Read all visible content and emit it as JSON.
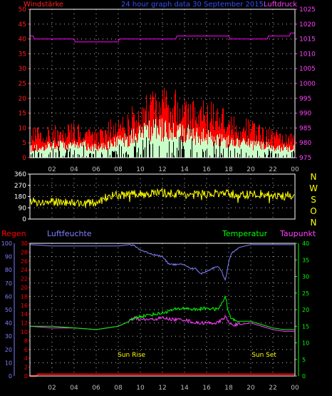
{
  "header": {
    "wind_title": "Windstärke",
    "center_title": "24 hour graph data  30 September 2015",
    "pressure_title": "Luftdruck"
  },
  "colors": {
    "background": "#000000",
    "grid": "#bdbdbd",
    "wind_gust": "#ff0000",
    "wind_avg": "#c8ffc8",
    "wind_dark": "#000000",
    "pressure": "#ff00ff",
    "direction": "#ffff00",
    "humidity": "#8080ff",
    "temperature": "#00ff00",
    "dewpoint": "#ff40ff",
    "rain": "#ff0000",
    "wind_axis": "#ff2020",
    "pressure_axis": "#ff40ff",
    "humidity_axis": "#8080ff",
    "temp_axis": "#00ff00",
    "rain_axis": "#ff0000",
    "sun_label": "#ffff00",
    "direction_axis": "#ffff00"
  },
  "chart_data": [
    {
      "id": "wind",
      "type": "bar",
      "title": "Windstärke",
      "x_ticks": [
        "02",
        "04",
        "06",
        "08",
        "10",
        "12",
        "14",
        "16",
        "18",
        "20",
        "22",
        "00"
      ],
      "y_ticks_left": [
        "0",
        "5",
        "10",
        "15",
        "20",
        "25",
        "30",
        "35",
        "40",
        "45",
        "50"
      ],
      "ylim": [
        0,
        50
      ],
      "grid": true,
      "series": [
        {
          "name": "Windstärke",
          "x_hours": [
            0,
            1,
            2,
            3,
            4,
            5,
            6,
            7,
            8,
            9,
            10,
            11,
            12,
            13,
            14,
            15,
            16,
            17,
            18,
            19,
            20,
            21,
            22,
            23,
            24
          ],
          "gust": [
            7,
            8,
            8,
            8,
            9,
            8,
            7,
            9,
            10,
            12,
            15,
            16,
            17,
            17,
            15,
            14,
            14,
            13,
            11,
            10,
            9,
            8,
            7,
            6,
            6
          ],
          "avg": [
            3,
            3,
            4,
            4,
            4,
            4,
            3,
            4,
            5,
            6,
            8,
            9,
            9,
            9,
            8,
            7,
            7,
            6,
            5,
            5,
            4,
            4,
            3,
            3,
            3
          ]
        }
      ],
      "secondary_axis": {
        "label": "Luftdruck",
        "y_ticks": [
          "975",
          "980",
          "985",
          "990",
          "995",
          "1000",
          "1005",
          "1010",
          "1015",
          "1020",
          "1025"
        ],
        "ylim": [
          975,
          1025
        ],
        "series": [
          {
            "name": "Luftdruck",
            "x_hours": [
              0,
              0.3,
              0.4,
              4.0,
              4.1,
              8.0,
              8.1,
              13.2,
              13.3,
              18.0,
              18.1,
              18.3,
              18.4,
              21.5,
              21.6,
              23.5,
              23.6,
              24
            ],
            "values": [
              1016,
              1016,
              1015,
              1015,
              1014,
              1014,
              1015,
              1015,
              1016,
              1016,
              1015,
              1015,
              1015,
              1015,
              1016,
              1016,
              1017,
              1017
            ]
          }
        ]
      }
    },
    {
      "id": "direction",
      "type": "line",
      "y_ticks_left": [
        "0",
        "90",
        "180",
        "270",
        "360"
      ],
      "ylim": [
        0,
        360
      ],
      "y_labels_right": [
        "N",
        "W",
        "S",
        "O",
        "N"
      ],
      "grid": true,
      "series": [
        {
          "name": "",
          "x_hours": [
            0,
            1,
            2,
            3,
            4,
            5,
            6,
            7,
            8,
            9,
            10,
            11,
            12,
            13,
            14,
            15,
            16,
            17,
            18,
            19,
            20,
            21,
            22,
            23,
            24
          ],
          "values": [
            150,
            130,
            135,
            140,
            130,
            125,
            130,
            180,
            190,
            195,
            200,
            205,
            210,
            205,
            200,
            195,
            200,
            205,
            200,
            195,
            195,
            200,
            190,
            180,
            200
          ]
        }
      ]
    },
    {
      "id": "climate",
      "type": "line",
      "x_ticks": [
        "02",
        "04",
        "06",
        "08",
        "10",
        "12",
        "14",
        "16",
        "18",
        "20",
        "22",
        "00"
      ],
      "grid": true,
      "left_axes": [
        {
          "label": "Regen",
          "y_ticks": [
            "0",
            "2",
            "4",
            "6",
            "8",
            "10",
            "12",
            "14",
            "16",
            "18",
            "20",
            "22",
            "24",
            "26",
            "28",
            "30"
          ],
          "ylim": [
            0,
            30
          ]
        },
        {
          "label": "Luftfeuchte",
          "y_ticks": [
            "0",
            "10",
            "20",
            "30",
            "40",
            "50",
            "60",
            "70",
            "80",
            "90",
            "100"
          ],
          "ylim": [
            0,
            100
          ]
        }
      ],
      "right_axis": {
        "label": "Temperatur",
        "label2": "Taupunkt",
        "y_ticks": [
          "0",
          "5",
          "10",
          "15",
          "20",
          "25",
          "30",
          "35",
          "40"
        ],
        "ylim": [
          0,
          40
        ]
      },
      "series": [
        {
          "name": "Luftfeuchte",
          "axis": "humidity",
          "x_hours": [
            0,
            2,
            4,
            6,
            8,
            9,
            9.5,
            10,
            11,
            12,
            12.5,
            13,
            14,
            14.5,
            15,
            15.5,
            16,
            16.5,
            17,
            17.4,
            17.7,
            18,
            18.3,
            19,
            20,
            21,
            22,
            23,
            24
          ],
          "values": [
            99,
            98,
            98,
            98,
            98,
            99,
            98,
            95,
            92,
            90,
            85,
            84,
            84,
            81,
            81,
            77,
            79,
            81,
            83,
            78,
            72,
            86,
            93,
            97,
            99,
            99,
            99,
            99,
            99
          ]
        },
        {
          "name": "Temperatur",
          "axis": "temp",
          "x_hours": [
            0,
            2,
            4,
            6,
            8,
            9,
            9.5,
            10,
            11,
            12,
            13,
            14,
            15,
            16,
            17,
            17.4,
            17.7,
            18,
            18.3,
            19,
            20,
            21,
            22,
            23,
            24
          ],
          "values": [
            15,
            15,
            14.5,
            14,
            15,
            16.5,
            17.5,
            18,
            18.5,
            19,
            20,
            20.5,
            20,
            20.5,
            20,
            22,
            24,
            19,
            17,
            16.5,
            16.5,
            15.5,
            14.5,
            14,
            14
          ]
        },
        {
          "name": "Taupunkt",
          "axis": "temp",
          "x_hours": [
            0,
            2,
            4,
            6,
            8,
            9,
            9.5,
            10,
            11,
            12,
            13,
            14,
            15,
            16,
            17,
            17.4,
            17.7,
            18,
            18.3,
            19,
            20,
            21,
            22,
            23,
            24
          ],
          "values": [
            15,
            14.5,
            14.5,
            14,
            15,
            16.5,
            17.5,
            17,
            17,
            17.5,
            17,
            17,
            16,
            16,
            16,
            17,
            18,
            16,
            15.5,
            15.5,
            16,
            15,
            14,
            13.5,
            13.5
          ]
        },
        {
          "name": "Regen",
          "axis": "rain",
          "x_hours": [
            0,
            0.6,
            0.7,
            24
          ],
          "values": [
            0,
            0,
            0.4,
            0.4
          ]
        }
      ],
      "annotations": [
        {
          "text": "Sun Rise",
          "x_hour": 9.2
        },
        {
          "text": "Sun Set",
          "x_hour": 21.2
        }
      ]
    }
  ]
}
